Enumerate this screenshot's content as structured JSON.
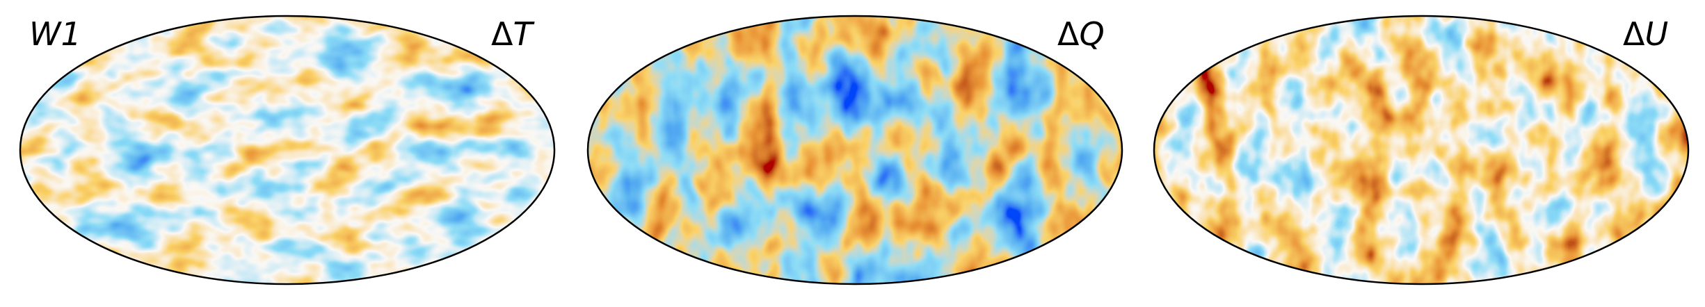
{
  "map_label": "W1",
  "panels": [
    {
      "delta": "Δ",
      "var": "T"
    },
    {
      "delta": "Δ",
      "var": "Q"
    },
    {
      "delta": "Δ",
      "var": "U"
    }
  ],
  "colormap": {
    "cold_deep": "#0010f0",
    "cold": "#1a6fe0",
    "cool": "#45b8ee",
    "neutral": "#f4f0e8",
    "warm": "#f5a623",
    "hot": "#d4500a",
    "hot_deep": "#6e0000"
  }
}
